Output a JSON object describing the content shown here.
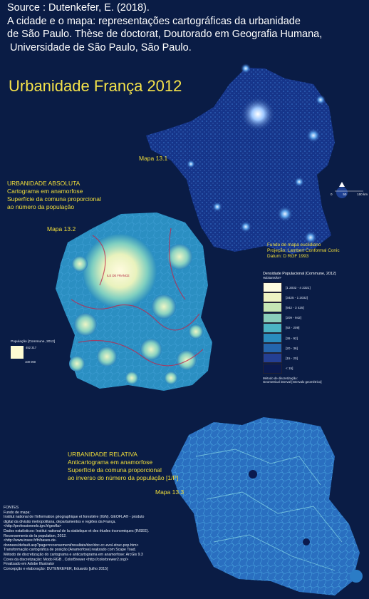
{
  "source": {
    "line1": "Source : Dutenkefer, E. (2018).",
    "line2": "A cidade e o mapa: representações cartográficas da urbanidade",
    "line3": "de São Paulo. Thèse de doctorat, Doutorado em Geografia Humana,",
    "line4": "Universidade de São Paulo, São Paulo."
  },
  "title": "Urbanidade França 2012",
  "map_131": {
    "label": "Mapa 13.1",
    "scale": [
      "0",
      "50",
      "100 km"
    ],
    "fundo": [
      "Fundo de mapa euclidiano",
      "Projeção: Lambert Conformal Conic",
      "Datum: D RGF 1993"
    ]
  },
  "map_132": {
    "label": "Mapa 13.2",
    "heading": "URBANIDADE ABSOLUTA",
    "desc": [
      "Cartograma em anamorfose",
      "Superfície da comuna proporcional",
      "ao número da população"
    ],
    "center_label": "ILE DE FRANCE"
  },
  "map_133": {
    "label": "Mapa 13.3",
    "heading": "URBANIDADE RELATIVA",
    "desc": [
      "Anticartograma em anamorfose",
      "Superfície da comuna proporcional",
      "ao inverso do número da população [1/P]"
    ]
  },
  "population_legend": {
    "title": "População [Commune, 2012]",
    "max": "452 317",
    "min": "100 000"
  },
  "density_legend": {
    "title": "Densidade Populacional [Commune, 2012]",
    "unit": "Habitants/km²",
    "classes": [
      {
        "label": "[1 2032 - 4 2321]",
        "color": "#fdfbe0"
      },
      {
        "label": "[3425 - 1 2032]",
        "color": "#eef3c2"
      },
      {
        "label": "[942 - 3 425]",
        "color": "#c6e6b4"
      },
      {
        "label": "[209 - 942]",
        "color": "#89cdbb"
      },
      {
        "label": "[92 - 209]",
        "color": "#4bb3c4"
      },
      {
        "label": "[36 - 92]",
        "color": "#2a8cbe"
      },
      {
        "label": "[20 - 36]",
        "color": "#2465ad"
      },
      {
        "label": "[15 - 20]",
        "color": "#243f93"
      },
      {
        "label": "< 15]",
        "color": "#0b1a4f"
      }
    ],
    "method": [
      "Método de discretização:",
      "Geometrical interval [Intervalo geométrico]"
    ]
  },
  "fontes": [
    "FONTES",
    "Fundo de mapa:",
    "Institut national de l'information géographique et forestière (IGN). GEOFLA® - produto",
    "digital da divisão metropolitana, departamentos e regiões da França.",
    "<http://professionnels.ign.fr/geofla>",
    "Dados estatísticos: Institut national de la statistique et des études économiques (INSEE).",
    "Recensements de la population, 2012.",
    "<http://www.insee.fr/fr/bases-de-",
    "donnees/default.asp?page=recensement/resultats/doc/doc-cc-evol-struc-pop.htm>",
    "Transformação cartográfica de posição [Anamorfose] realizado com Scape Toad.",
    "Método de discretização do cartograma e anticartograma em anamorfose: ArcGis 9.3",
    "Cores da discretização: Modo RGB , ColorBrewer <http://colorbrewer2.org/>",
    "Finalizado em Adobe Illustrator",
    "Concepção e elaboração: DUTENKEFER, Eduardo [julho 2015]"
  ]
}
